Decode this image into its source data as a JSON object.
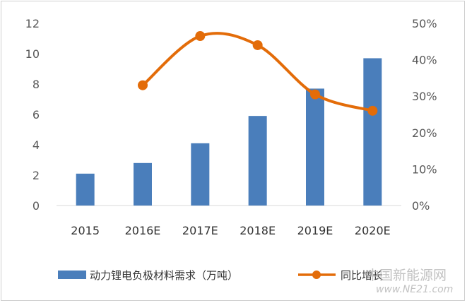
{
  "chart_data": {
    "type": "bar",
    "categories": [
      "2015",
      "2016E",
      "2017E",
      "2018E",
      "2019E",
      "2020E"
    ],
    "series": [
      {
        "name": "动力锂电负极材料需求（万吨）",
        "type": "bar",
        "axis": "left",
        "color": "#4a7ebb",
        "values": [
          2.1,
          2.8,
          4.1,
          5.9,
          7.7,
          9.7
        ]
      },
      {
        "name": "同比增长",
        "type": "line",
        "axis": "right",
        "color": "#e36c09",
        "values": [
          null,
          33,
          46.5,
          44,
          30.5,
          26
        ]
      }
    ],
    "y_left": {
      "ticks": [
        "0",
        "2",
        "4",
        "6",
        "8",
        "10",
        "12"
      ],
      "ylim": [
        0,
        12
      ]
    },
    "y_right": {
      "ticks": [
        "0%",
        "10%",
        "20%",
        "30%",
        "40%",
        "50%"
      ],
      "ylim": [
        0,
        50
      ]
    },
    "legend_position": "bottom",
    "grid": false
  },
  "watermark": {
    "line1": "中国新能源网",
    "line2": "www.NE21.com"
  }
}
